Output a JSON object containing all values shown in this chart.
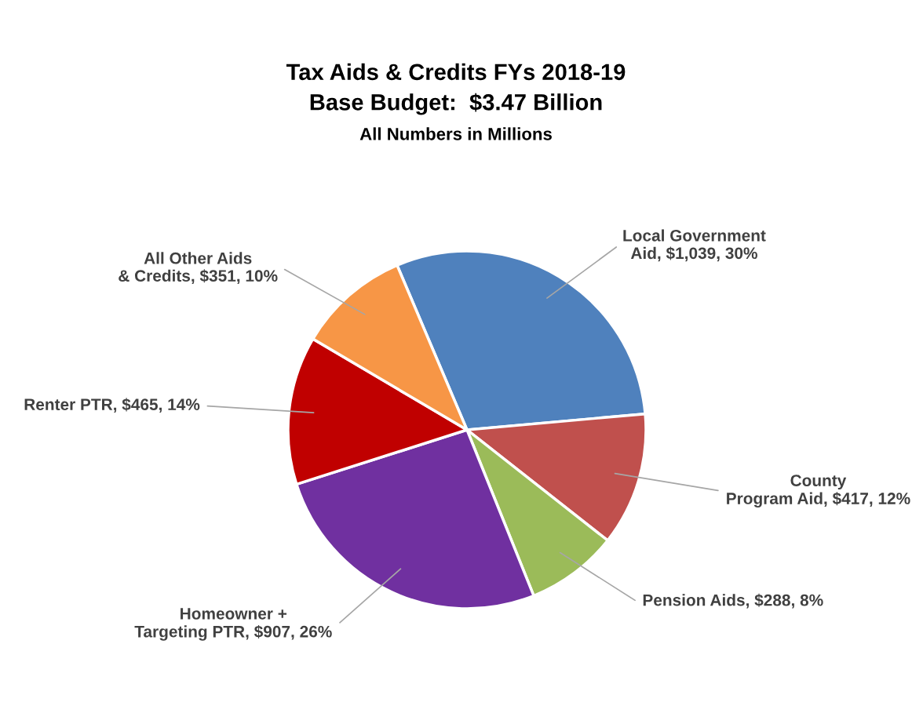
{
  "chart_data": {
    "type": "pie",
    "title": "Tax Aids & Credits FYs 2018-19\nBase Budget:  $3.47 Billion",
    "subtitle": "All Numbers in Millions",
    "categories": [
      "Local Government\nAid",
      "County\nProgram Aid",
      "Pension Aids",
      "Homeowner +\nTargeting PTR",
      "Renter PTR",
      "All Other Aids\n& Credits"
    ],
    "values": [
      1039,
      417,
      288,
      907,
      465,
      351
    ],
    "value_labels": [
      "$1,039, 30%",
      "$417, 12%",
      "$288, 8%",
      "$907, 26%",
      "$465, 14%",
      "$351, 10%"
    ],
    "colors": [
      "#4f81bd",
      "#c0504d",
      "#9bbb59",
      "#7030a0",
      "#c00000",
      "#f79646"
    ],
    "legend": false
  }
}
